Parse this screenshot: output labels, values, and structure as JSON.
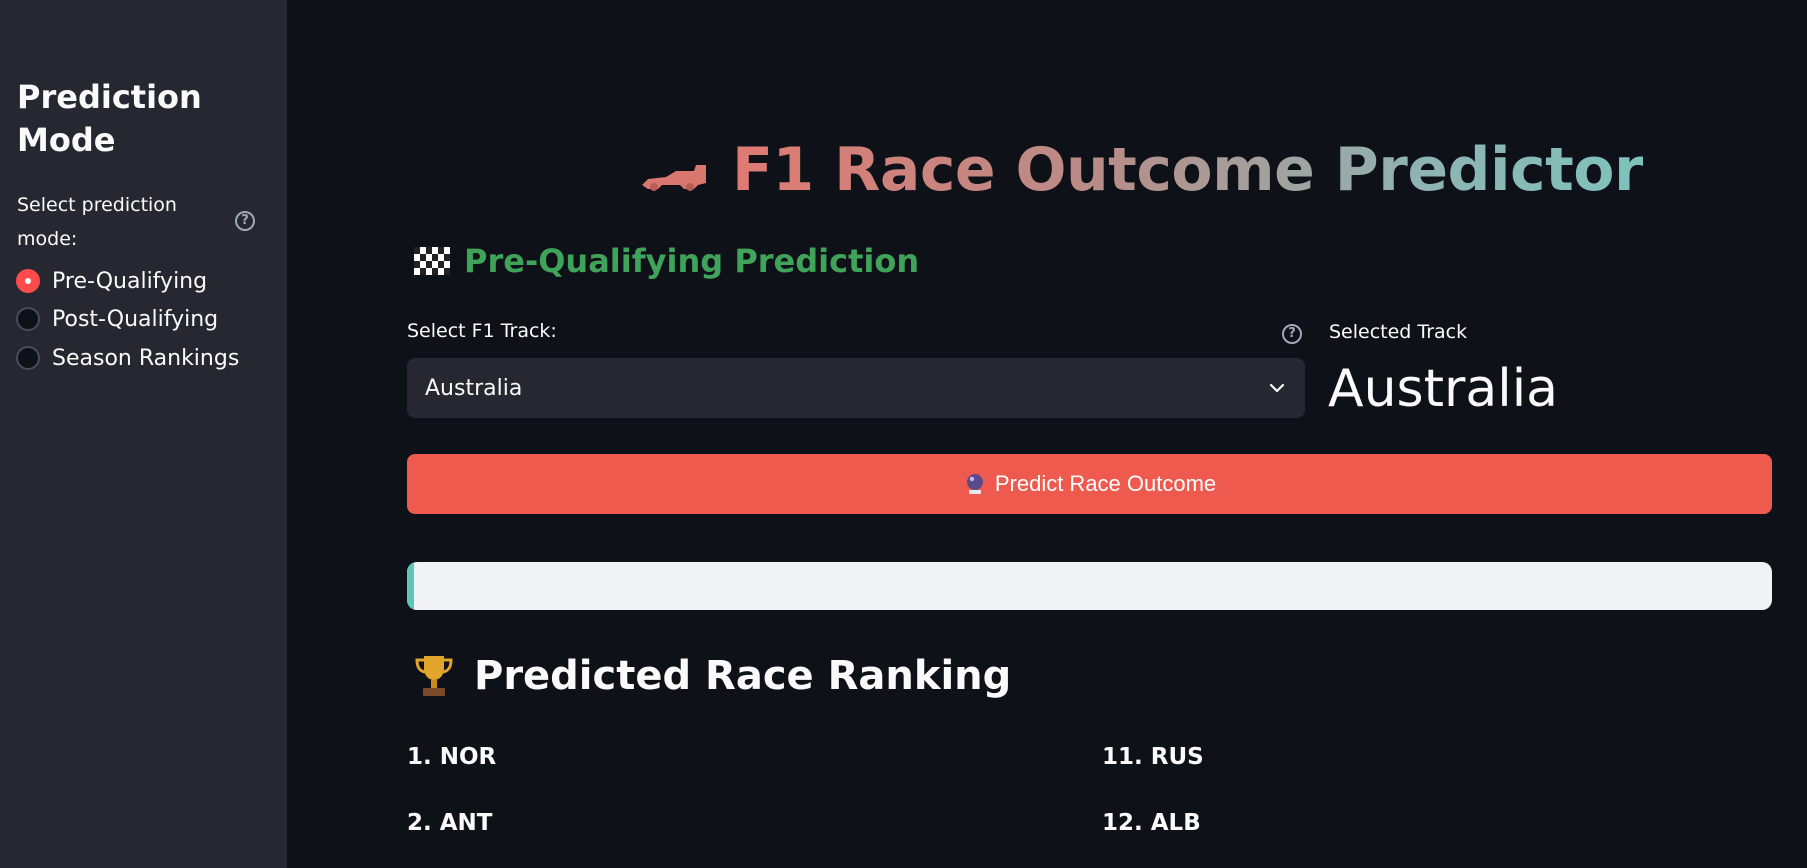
{
  "sidebar": {
    "title": "Prediction Mode",
    "radio_label": "Select prediction mode:",
    "options": [
      "Pre-Qualifying",
      "Post-Qualifying",
      "Season Rankings"
    ],
    "selected_index": 0
  },
  "main": {
    "title": "F1 Race Outcome Predictor",
    "title_icon": "race-car-icon",
    "subheader": "Pre-Qualifying Prediction",
    "subheader_icon": "checkered-flag-icon",
    "track_select": {
      "label": "Select F1 Track:",
      "value": "Australia"
    },
    "selected_track": {
      "label": "Selected Track",
      "value": "Australia"
    },
    "predict_button": {
      "label": "Predict Race Outcome",
      "icon": "crystal-ball-icon"
    },
    "progress": 0.005,
    "ranking": {
      "heading": "Predicted Race Ranking",
      "icon": "trophy-icon",
      "items": [
        "1. NOR",
        "2. ANT",
        "11. RUS",
        "12. ALB"
      ]
    }
  },
  "colors": {
    "background": "#0e1117",
    "sidebar": "#262730",
    "accent": "#ff4b4b",
    "button": "#ef5a4f",
    "subheader": "#3fa35a",
    "progress_fill": "#5ec7b9"
  }
}
